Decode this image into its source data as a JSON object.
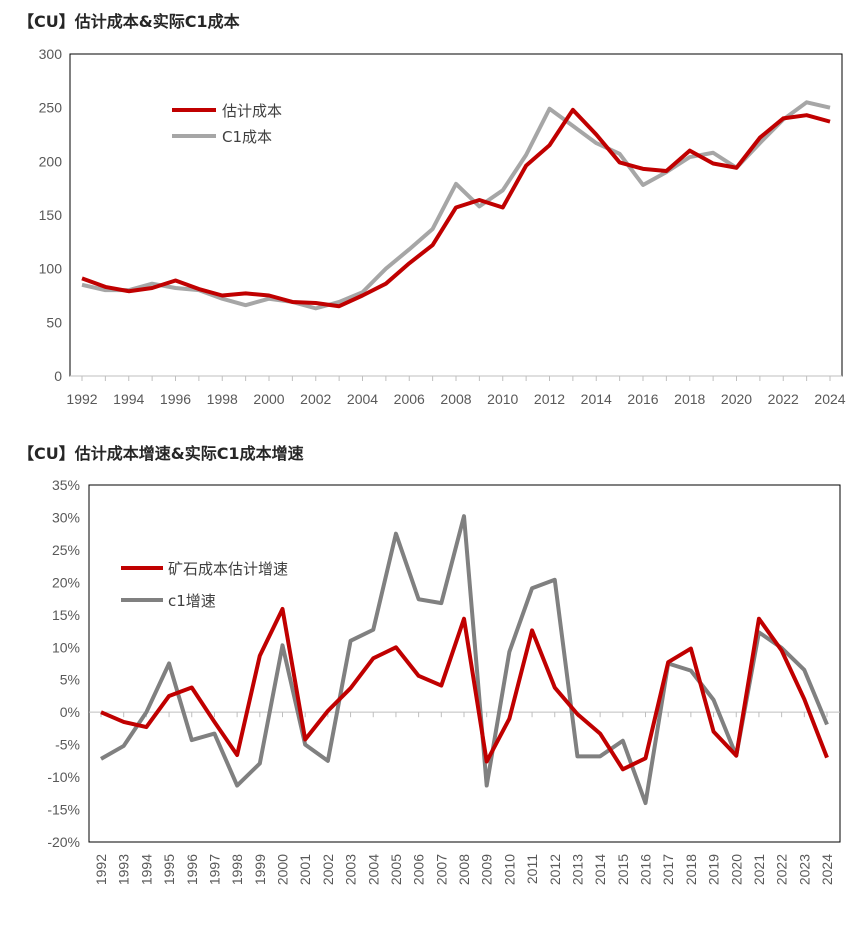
{
  "chart_data": [
    {
      "type": "line",
      "title": "【CU】估计成本&实际C1成本",
      "x": [
        1992,
        1993,
        1994,
        1995,
        1996,
        1997,
        1998,
        1999,
        2000,
        2001,
        2002,
        2003,
        2004,
        2005,
        2006,
        2007,
        2008,
        2009,
        2010,
        2011,
        2012,
        2013,
        2014,
        2015,
        2016,
        2017,
        2018,
        2019,
        2020,
        2021,
        2022,
        2023,
        2024
      ],
      "x_tick_labels": [
        "1992",
        "1994",
        "1996",
        "1998",
        "2000",
        "2002",
        "2004",
        "2006",
        "2008",
        "2010",
        "2012",
        "2014",
        "2016",
        "2018",
        "2020",
        "2022",
        "2024"
      ],
      "ylim": [
        0,
        300
      ],
      "y_ticks": [
        "0",
        "50",
        "100",
        "150",
        "200",
        "250",
        "300"
      ],
      "series": [
        {
          "name": "估计成本",
          "color": "#c00000",
          "values": [
            91,
            83,
            79,
            82,
            89,
            81,
            75,
            77,
            75,
            69,
            68,
            65,
            75,
            86,
            105,
            122,
            157,
            164,
            157,
            196,
            215,
            248,
            225,
            199,
            193,
            191,
            210,
            198,
            194,
            222,
            240,
            243,
            237
          ]
        },
        {
          "name": "C1成本",
          "color": "#a6a6a6",
          "values": [
            85,
            80,
            80,
            86,
            82,
            80,
            72,
            66,
            72,
            69,
            63,
            69,
            78,
            100,
            118,
            137,
            179,
            158,
            173,
            206,
            249,
            233,
            217,
            207,
            178,
            190,
            204,
            208,
            194,
            217,
            239,
            255,
            250
          ]
        }
      ],
      "legend": "top-left",
      "grid": false
    },
    {
      "type": "line",
      "title": "【CU】估计成本增速&实际C1成本增速",
      "x": [
        1992,
        1993,
        1994,
        1995,
        1996,
        1997,
        1998,
        1999,
        2000,
        2001,
        2002,
        2003,
        2004,
        2005,
        2006,
        2007,
        2008,
        2009,
        2010,
        2011,
        2012,
        2013,
        2014,
        2015,
        2016,
        2017,
        2018,
        2019,
        2020,
        2021,
        2022,
        2023,
        2024
      ],
      "x_tick_labels": [
        "1992",
        "1993",
        "1994",
        "1995",
        "1996",
        "1997",
        "1998",
        "1999",
        "2000",
        "2001",
        "2002",
        "2003",
        "2004",
        "2005",
        "2006",
        "2007",
        "2008",
        "2009",
        "2010",
        "2011",
        "2012",
        "2013",
        "2014",
        "2015",
        "2016",
        "2017",
        "2018",
        "2019",
        "2020",
        "2021",
        "2022",
        "2023",
        "2024"
      ],
      "ylim": [
        -20,
        35
      ],
      "y_ticks": [
        "-20%",
        "-15%",
        "-10%",
        "-5%",
        "0%",
        "5%",
        "10%",
        "15%",
        "20%",
        "25%",
        "30%",
        "35%"
      ],
      "series": [
        {
          "name": "矿石成本估计增速",
          "color": "#c00000",
          "values": [
            0,
            -1.5,
            -2.3,
            2.5,
            3.8,
            -1.5,
            -6.6,
            8.7,
            15.9,
            -4.2,
            0.2,
            3.7,
            8.3,
            10,
            5.6,
            4.1,
            14.4,
            -7.6,
            -1,
            12.6,
            3.8,
            -0.3,
            -3.3,
            -8.8,
            -7.1,
            7.7,
            9.8,
            -3,
            -6.7,
            14.4,
            9.5,
            2,
            -7
          ]
        },
        {
          "name": "c1增速",
          "color": "#808080",
          "values": [
            -7.2,
            -5.2,
            0,
            7.5,
            -4.3,
            -3.3,
            -11.3,
            -7.9,
            10.3,
            -5,
            -7.5,
            11,
            12.7,
            27.5,
            17.4,
            16.8,
            30.2,
            -11.3,
            9.3,
            19.1,
            20.4,
            -6.8,
            -6.8,
            -4.4,
            -14,
            7.5,
            6.4,
            1.9,
            -6.7,
            12.3,
            9.9,
            6.5,
            -1.9
          ]
        }
      ],
      "legend": "top-left",
      "grid": false
    }
  ]
}
